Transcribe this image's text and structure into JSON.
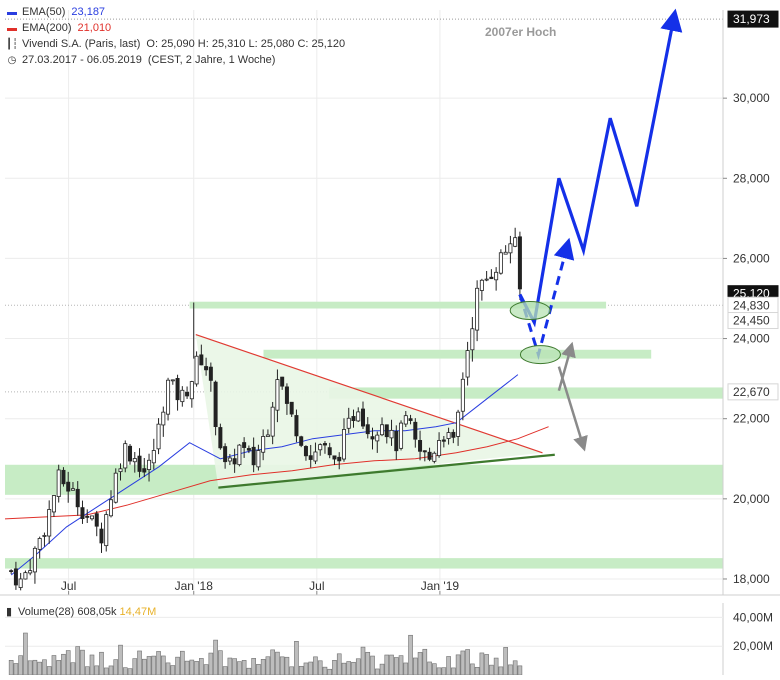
{
  "legend": {
    "ema50": {
      "label": "EMA(50)",
      "value": "23,187",
      "color": "#2a3ee0"
    },
    "ema200": {
      "label": "EMA(200)",
      "value": "21,010",
      "color": "#e0302a"
    },
    "instrument": {
      "label": "Vivendi S.A. (Paris, last)",
      "ohlc": "O: 25,090  H: 25,310  L: 25,080  C: 25,120"
    },
    "range": {
      "label": "27.03.2017 - 06.05.2019",
      "detail": "(CEST, 2 Jahre, 1 Woche)"
    }
  },
  "annotation": "2007er Hoch",
  "volume_legend": {
    "label": "Volume(28)",
    "value1": "608,05k",
    "value2": "14,47M",
    "value2_color": "#e8b22a"
  },
  "chart_data": {
    "type": "candlestick",
    "x_ticks": [
      {
        "label": "Jul",
        "month": 3.1
      },
      {
        "label": "Jan '18",
        "month": 9.2
      },
      {
        "label": "Jul",
        "month": 15.2
      },
      {
        "label": "Jan '19",
        "month": 21.2
      }
    ],
    "y_ticks": [
      {
        "label": "18,000",
        "value": 18.0
      },
      {
        "label": "20,000",
        "value": 20.0
      },
      {
        "label": "22,000",
        "value": 22.0
      },
      {
        "label": "24,000",
        "value": 24.0
      },
      {
        "label": "26,000",
        "value": 26.0
      },
      {
        "label": "28,000",
        "value": 28.0
      },
      {
        "label": "30,000",
        "value": 30.0
      }
    ],
    "ylim": [
      17.6,
      32.2
    ],
    "xlim_months": [
      0,
      35
    ],
    "price_markers": [
      {
        "label": "31,973",
        "value": 31.973,
        "style": "dark"
      },
      {
        "label": "25,120",
        "value": 25.12,
        "style": "dark"
      },
      {
        "label": "24,830",
        "value": 24.83,
        "style": "light"
      },
      {
        "label": "24,450",
        "value": 24.45,
        "style": "light"
      },
      {
        "label": "22,670",
        "value": 22.67,
        "style": "light"
      }
    ],
    "zones": [
      {
        "name": "zone-24800",
        "x0": 9.0,
        "x1": 29.3,
        "y0": 24.75,
        "y1": 24.92
      },
      {
        "name": "zone-23600",
        "x0": 12.6,
        "x1": 31.5,
        "y0": 23.5,
        "y1": 23.72
      },
      {
        "name": "zone-22600",
        "x0": 15.8,
        "x1": 35.0,
        "y0": 22.5,
        "y1": 22.78
      },
      {
        "name": "zone-20500",
        "x0": 0,
        "x1": 35.0,
        "y0": 20.1,
        "y1": 20.85
      },
      {
        "name": "zone-18400",
        "x0": 0,
        "x1": 35.0,
        "y0": 18.26,
        "y1": 18.52
      }
    ],
    "triangle": [
      [
        9.3,
        24.1
      ],
      [
        26.2,
        21.15
      ],
      [
        10.4,
        20.28
      ]
    ],
    "resistance_line": [
      [
        9.3,
        24.1
      ],
      [
        26.2,
        21.15
      ]
    ],
    "support_line": [
      [
        10.4,
        20.28
      ],
      [
        26.8,
        21.1
      ]
    ],
    "ema50_points": [
      [
        0.3,
        18.1
      ],
      [
        1.5,
        18.6
      ],
      [
        3.0,
        19.3
      ],
      [
        4.5,
        19.8
      ],
      [
        6.0,
        20.3
      ],
      [
        7.5,
        20.8
      ],
      [
        9.0,
        21.4
      ],
      [
        10.5,
        21.0
      ],
      [
        12.0,
        21.2
      ],
      [
        13.5,
        21.3
      ],
      [
        15.0,
        21.5
      ],
      [
        16.5,
        21.6
      ],
      [
        18.0,
        21.7
      ],
      [
        19.5,
        21.7
      ],
      [
        21.0,
        21.8
      ],
      [
        22.0,
        21.9
      ],
      [
        23.0,
        22.3
      ],
      [
        24.0,
        22.7
      ],
      [
        25.0,
        23.1
      ]
    ],
    "ema200_points": [
      [
        0.0,
        19.5
      ],
      [
        2.0,
        19.55
      ],
      [
        4.0,
        19.6
      ],
      [
        6.0,
        19.85
      ],
      [
        8.0,
        20.15
      ],
      [
        10.0,
        20.45
      ],
      [
        12.0,
        20.6
      ],
      [
        14.0,
        20.7
      ],
      [
        16.0,
        20.85
      ],
      [
        18.0,
        20.95
      ],
      [
        20.0,
        21.0
      ],
      [
        22.0,
        21.15
      ],
      [
        23.5,
        21.3
      ],
      [
        25.0,
        21.5
      ],
      [
        26.5,
        21.8
      ]
    ],
    "forecast_solid": [
      [
        25.1,
        25.1
      ],
      [
        25.8,
        24.4
      ],
      [
        27.0,
        28.0
      ],
      [
        28.2,
        26.2
      ],
      [
        29.5,
        29.5
      ],
      [
        30.8,
        27.3
      ],
      [
        32.6,
        32.0
      ]
    ],
    "forecast_dashed": [
      [
        25.1,
        25.1
      ],
      [
        26.0,
        23.6
      ],
      [
        27.4,
        26.3
      ]
    ],
    "grey_arrow_up": [
      [
        27.0,
        22.7
      ],
      [
        27.6,
        23.8
      ]
    ],
    "grey_arrow_down": [
      [
        27.0,
        23.3
      ],
      [
        28.2,
        21.3
      ]
    ],
    "ellipses": [
      [
        25.6,
        24.7
      ],
      [
        26.1,
        23.6
      ]
    ],
    "volume_ticks": [
      {
        "label": "40,00M",
        "value": 40
      },
      {
        "label": "20,00M",
        "value": 20
      }
    ],
    "volume_ylim": [
      0,
      50
    ]
  }
}
